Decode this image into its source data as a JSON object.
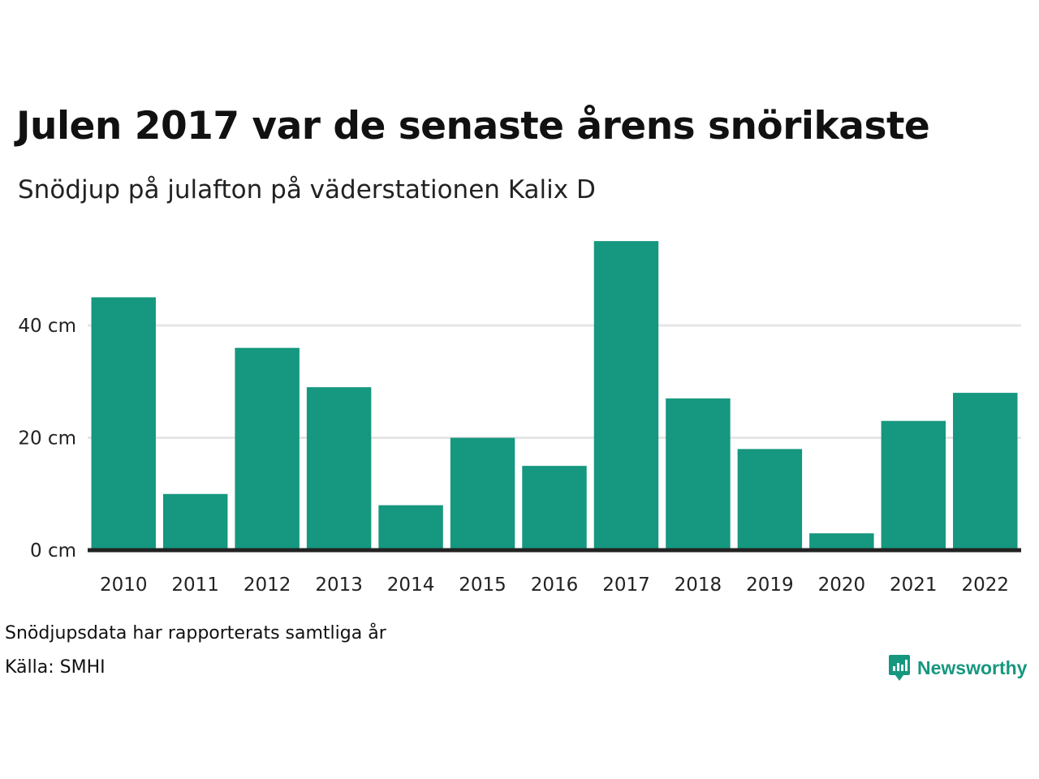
{
  "header": {
    "title": "Julen 2017 var de senaste årens snörikaste",
    "subtitle": "Snödjup på julafton på väderstationen Kalix D"
  },
  "footer": {
    "note": "Snödjupsdata har rapporterats samtliga år",
    "source": "Källa: SMHI"
  },
  "brand": {
    "name": "Newsworthy",
    "icon": "newsworthy-logo-icon",
    "color": "#16977f"
  },
  "chart_data": {
    "type": "bar",
    "title": "Julen 2017 var de senaste årens snörikaste",
    "subtitle": "Snödjup på julafton på väderstationen Kalix D",
    "categories": [
      "2010",
      "2011",
      "2012",
      "2013",
      "2014",
      "2015",
      "2016",
      "2017",
      "2018",
      "2019",
      "2020",
      "2021",
      "2022"
    ],
    "values": [
      45,
      10,
      36,
      29,
      8,
      20,
      15,
      55,
      27,
      18,
      3,
      23,
      28
    ],
    "unit": "cm",
    "yticks": [
      0,
      20,
      40
    ],
    "ytick_labels": [
      "0 cm",
      "20 cm",
      "40 cm"
    ],
    "ylim": [
      0,
      58
    ],
    "grid": true,
    "bar_color": "#16977f",
    "grid_color": "#e6e6e6",
    "baseline_color": "#222222"
  }
}
